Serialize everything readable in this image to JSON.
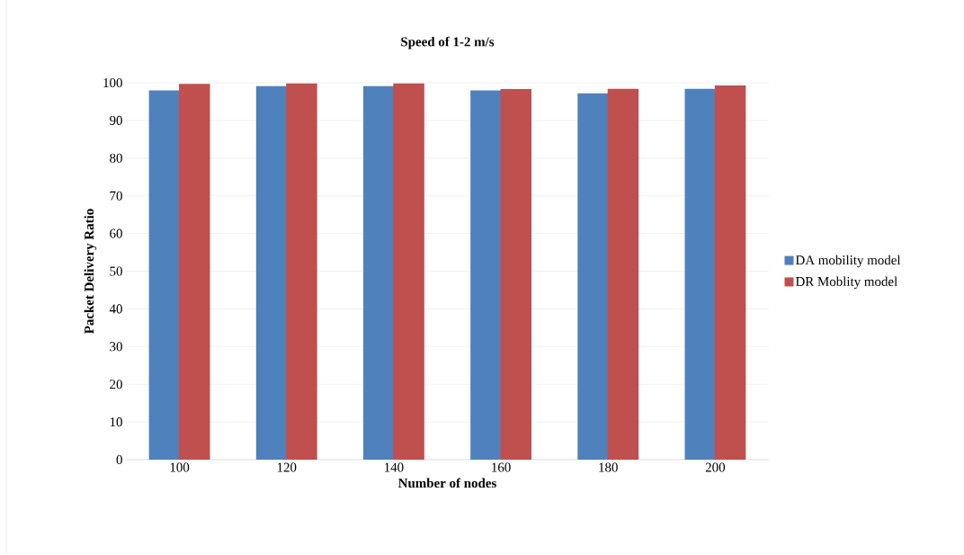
{
  "chart_data": {
    "type": "bar",
    "title": "Speed of 1-2 m/s",
    "xlabel": "Number of nodes",
    "ylabel": "Packet Delivery Ratio",
    "categories": [
      "100",
      "120",
      "140",
      "160",
      "180",
      "200"
    ],
    "series": [
      {
        "name": "DA mobility model",
        "color": "#4f81bd",
        "values": [
          98.0,
          99.1,
          99.1,
          98.0,
          97.2,
          98.4
        ]
      },
      {
        "name": "DR Moblity model",
        "color": "#c0504d",
        "values": [
          99.7,
          99.8,
          99.8,
          98.3,
          98.4,
          99.3
        ]
      }
    ],
    "ylim": [
      0,
      100
    ],
    "yticks": [
      0,
      10,
      20,
      30,
      40,
      50,
      60,
      70,
      80,
      90,
      100
    ],
    "grid": "y",
    "legend": "right"
  }
}
